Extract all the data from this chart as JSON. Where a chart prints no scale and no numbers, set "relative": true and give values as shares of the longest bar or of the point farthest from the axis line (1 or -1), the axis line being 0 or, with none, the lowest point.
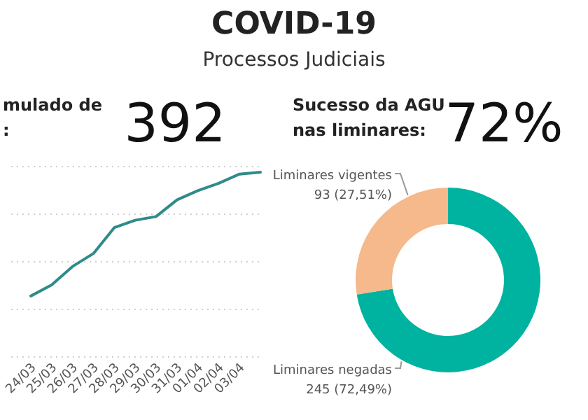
{
  "chart_data": [
    {
      "type": "other",
      "title": "COVID-19",
      "subtitle": "Processos Judiciais"
    },
    {
      "type": "line",
      "title": "mulado de\n:",
      "annotations": [
        "392"
      ],
      "relative": true,
      "grid": "y",
      "categories": [
        "24/03",
        "25/03",
        "26/03",
        "27/03",
        "28/03",
        "29/03",
        "30/03",
        "31/03",
        "01/04",
        "02/04",
        "03/04",
        null
      ],
      "series": [
        {
          "color": "#2f8b8a",
          "values": [
            0.33,
            0.39,
            0.49,
            0.56,
            0.7,
            0.74,
            0.76,
            0.85,
            0.9,
            0.94,
            0.99,
            1
          ]
        }
      ]
    },
    {
      "type": "donut",
      "title": "Sucesso da AGU\nnas liminares:",
      "annotations": [
        "72%"
      ],
      "categories": [
        "Liminares negadas",
        "Liminares vigentes"
      ],
      "values": [
        245,
        93
      ],
      "colors": [
        "#00b2a0",
        "#f5b98b"
      ],
      "value_labels": [
        "245 (72,49%)",
        "93 (27,51%)"
      ]
    }
  ]
}
